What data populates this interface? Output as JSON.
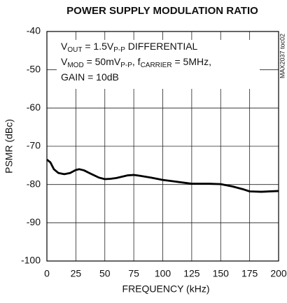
{
  "chart_data": {
    "type": "line",
    "title": "POWER SUPPLY MODULATION RATIO",
    "xlabel": "FREQUENCY (kHz)",
    "ylabel": "PSMR (dBc)",
    "side_note": "MAX2037 toc02",
    "annotation_lines": [
      [
        "V",
        "OUT",
        " = 1.5V",
        "P-P",
        " DIFFERENTIAL"
      ],
      [
        "V",
        "MOD",
        " = 50mV",
        "P-P",
        ", f",
        "CARRIER",
        " = 5MHz,"
      ],
      [
        "GAIN = 10dB"
      ]
    ],
    "x": [
      0,
      3,
      6,
      10,
      15,
      20,
      25,
      28,
      32,
      38,
      45,
      50,
      55,
      60,
      70,
      75,
      80,
      90,
      100,
      110,
      125,
      140,
      150,
      160,
      170,
      175,
      185,
      200
    ],
    "values": [
      -73.5,
      -74.2,
      -76.0,
      -77.0,
      -77.3,
      -77.0,
      -76.2,
      -76.0,
      -76.3,
      -77.2,
      -78.2,
      -78.6,
      -78.5,
      -78.3,
      -77.6,
      -77.5,
      -77.7,
      -78.2,
      -78.8,
      -79.2,
      -79.8,
      -79.8,
      -79.9,
      -80.5,
      -81.3,
      -81.8,
      -81.9,
      -81.7
    ],
    "color": "#000000",
    "xlim": [
      0,
      200
    ],
    "xticks": [
      0,
      25,
      50,
      75,
      100,
      125,
      150,
      175,
      200
    ],
    "ylim": [
      -100,
      -40
    ],
    "yticks": [
      -100,
      -90,
      -80,
      -70,
      -60,
      -50,
      -40
    ],
    "grid": true
  }
}
